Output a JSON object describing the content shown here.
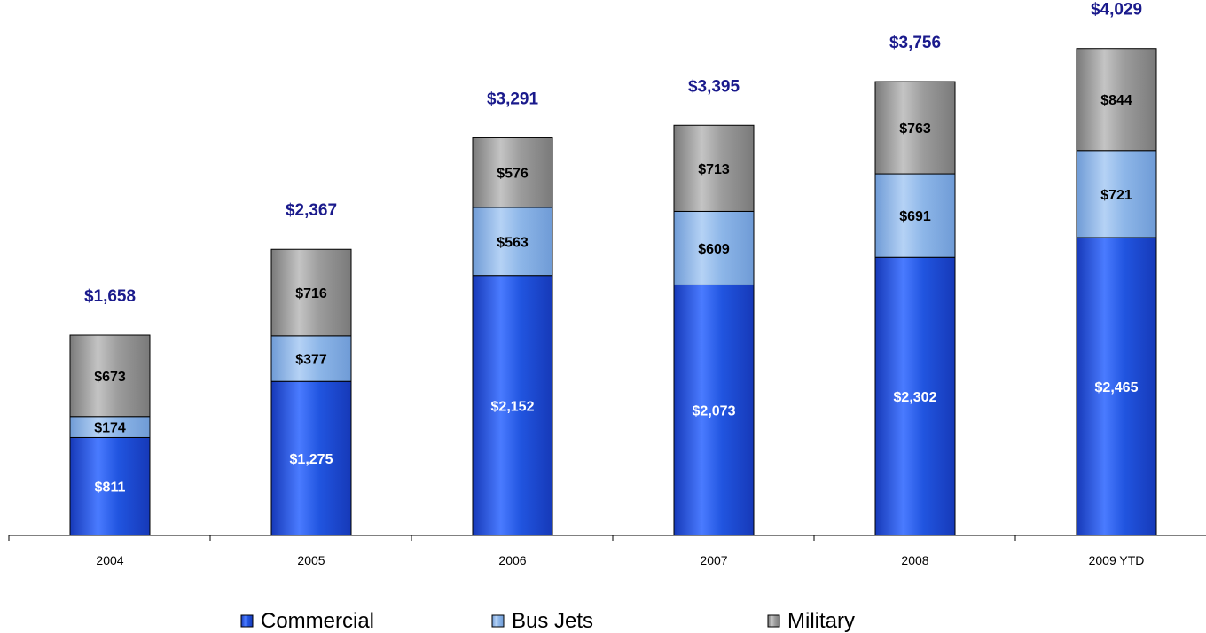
{
  "chart_data": {
    "type": "bar",
    "stacked": true,
    "categories": [
      "2004",
      "2005",
      "2006",
      "2007",
      "2008",
      "2009 YTD"
    ],
    "series": [
      {
        "name": "Commercial",
        "values": [
          811,
          1275,
          2152,
          2073,
          2302,
          2465
        ],
        "labels": [
          "$811",
          "$1,275",
          "$2,152",
          "$2,073",
          "$2,302",
          "$2,465"
        ],
        "color": "#2155E0",
        "color_light": "#4A7BFF",
        "color_dark": "#1639B8",
        "label_color": "#FFFFFF"
      },
      {
        "name": "Bus Jets",
        "values": [
          174,
          377,
          563,
          609,
          691,
          721
        ],
        "labels": [
          "$174",
          "$377",
          "$563",
          "$609",
          "$691",
          "$721"
        ],
        "color": "#8DB6E8",
        "color_light": "#B5D2F5",
        "color_dark": "#6F9BD6",
        "label_color": "#000000"
      },
      {
        "name": "Military",
        "values": [
          673,
          716,
          576,
          713,
          763,
          844
        ],
        "labels": [
          "$673",
          "$716",
          "$576",
          "$713",
          "$763",
          "$844"
        ],
        "color": "#9C9C9C",
        "color_light": "#C4C4C4",
        "color_dark": "#7A7A7A",
        "label_color": "#000000"
      }
    ],
    "totals": [
      1658,
      2367,
      3291,
      3395,
      3756,
      4029
    ],
    "total_labels": [
      "$1,658",
      "$2,367",
      "$3,291",
      "$3,395",
      "$3,756",
      "$4,029"
    ],
    "total_label_color": "#1A1A8C",
    "title": "",
    "xlabel": "",
    "ylabel": "",
    "ylim": [
      0,
      4100
    ],
    "grid": false,
    "legend_position": "bottom"
  }
}
